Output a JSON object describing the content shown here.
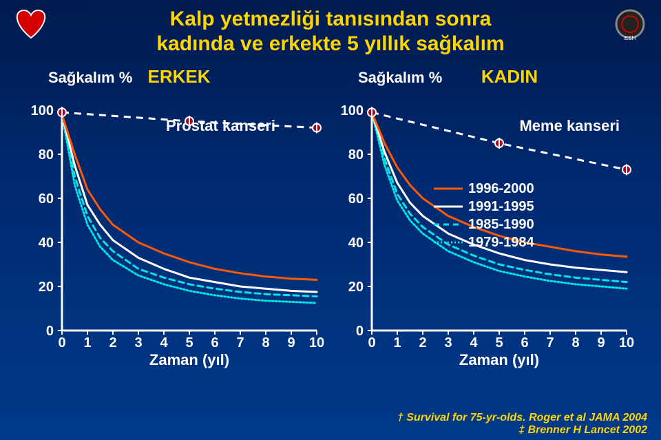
{
  "title_line1": "Kalp yetmezliği tanısından sonra",
  "title_line2": "kadında ve erkekte 5 yıllık sağkalım",
  "left_axis_label": "Sağkalım %",
  "right_axis_label": "Sağkalım %",
  "male_label": "ERKEK",
  "female_label": "KADIN",
  "male_cancer": "Prostat kanseri",
  "female_cancer": "Meme kanseri",
  "x_label": "Zaman (yıl)",
  "citation1": "† Survival for 75-yr-olds. Roger et al JAMA 2004",
  "citation2": "‡ Brenner H Lancet 2002",
  "colors": {
    "title": "#ffd500",
    "bg_top": "#001a4d",
    "bg_bot": "#003a8a",
    "axis": "#ffffff",
    "cancer_line": "#ffffff",
    "cancer_marker_fill": "#aa0020",
    "series_1996_2000": "#ff5a00",
    "series_1991_1995": "#ffffff",
    "series_1985_1990": "#00e5e5",
    "series_1979_1984": "#00e5e5"
  },
  "legend": [
    {
      "key": "s1",
      "label": "1996-2000",
      "color": "#ff5a00",
      "dash": "none"
    },
    {
      "key": "s2",
      "label": "1991-1995",
      "color": "#ffffff",
      "dash": "none"
    },
    {
      "key": "s3",
      "label": "1985-1990",
      "color": "#00e5e5",
      "dash": "8 6"
    },
    {
      "key": "s4",
      "label": "1979-1984",
      "color": "#00e5e5",
      "dash": "2 3"
    }
  ],
  "y_ticks": [
    0,
    20,
    40,
    60,
    80,
    100
  ],
  "x_ticks": [
    0,
    1,
    2,
    3,
    4,
    5,
    6,
    7,
    8,
    9,
    10
  ],
  "ylim": [
    0,
    100
  ],
  "xlim": [
    0,
    10
  ],
  "male_chart": {
    "cancer": [
      [
        0,
        99
      ],
      [
        5,
        95
      ],
      [
        10,
        92
      ]
    ],
    "s1": [
      [
        0,
        98
      ],
      [
        0.5,
        80
      ],
      [
        1,
        64
      ],
      [
        1.5,
        55
      ],
      [
        2,
        48
      ],
      [
        3,
        40
      ],
      [
        4,
        35
      ],
      [
        5,
        31
      ],
      [
        6,
        28
      ],
      [
        7,
        26
      ],
      [
        8,
        24.5
      ],
      [
        9,
        23.5
      ],
      [
        10,
        23
      ]
    ],
    "s2": [
      [
        0,
        98
      ],
      [
        0.5,
        75
      ],
      [
        1,
        57
      ],
      [
        1.5,
        48
      ],
      [
        2,
        41
      ],
      [
        3,
        33
      ],
      [
        4,
        28
      ],
      [
        5,
        24
      ],
      [
        6,
        22
      ],
      [
        7,
        20
      ],
      [
        8,
        19
      ],
      [
        9,
        18
      ],
      [
        10,
        17.5
      ]
    ],
    "s3": [
      [
        0,
        98
      ],
      [
        0.5,
        70
      ],
      [
        1,
        52
      ],
      [
        1.5,
        42
      ],
      [
        2,
        36
      ],
      [
        3,
        28
      ],
      [
        4,
        24
      ],
      [
        5,
        21
      ],
      [
        6,
        19
      ],
      [
        7,
        17.5
      ],
      [
        8,
        16.5
      ],
      [
        9,
        16
      ],
      [
        10,
        15.5
      ]
    ],
    "s4": [
      [
        0,
        98
      ],
      [
        0.5,
        66
      ],
      [
        1,
        48
      ],
      [
        1.5,
        38
      ],
      [
        2,
        32
      ],
      [
        3,
        25
      ],
      [
        4,
        21
      ],
      [
        5,
        18
      ],
      [
        6,
        16
      ],
      [
        7,
        14.5
      ],
      [
        8,
        13.5
      ],
      [
        9,
        13
      ],
      [
        10,
        12.5
      ]
    ]
  },
  "female_chart": {
    "cancer": [
      [
        0,
        99
      ],
      [
        5,
        85
      ],
      [
        10,
        73
      ]
    ],
    "s1": [
      [
        0,
        99
      ],
      [
        0.5,
        85
      ],
      [
        1,
        74
      ],
      [
        1.5,
        66
      ],
      [
        2,
        60
      ],
      [
        3,
        52
      ],
      [
        4,
        47
      ],
      [
        5,
        43
      ],
      [
        6,
        40
      ],
      [
        7,
        38
      ],
      [
        8,
        36
      ],
      [
        9,
        34.5
      ],
      [
        10,
        33.5
      ]
    ],
    "s2": [
      [
        0,
        99
      ],
      [
        0.5,
        81
      ],
      [
        1,
        67
      ],
      [
        1.5,
        58
      ],
      [
        2,
        52
      ],
      [
        3,
        44
      ],
      [
        4,
        39
      ],
      [
        5,
        35
      ],
      [
        6,
        32
      ],
      [
        7,
        30
      ],
      [
        8,
        28.5
      ],
      [
        9,
        27.5
      ],
      [
        10,
        26.5
      ]
    ],
    "s3": [
      [
        0,
        99
      ],
      [
        0.5,
        78
      ],
      [
        1,
        62
      ],
      [
        1.5,
        53
      ],
      [
        2,
        47
      ],
      [
        3,
        39
      ],
      [
        4,
        34
      ],
      [
        5,
        30
      ],
      [
        6,
        27.5
      ],
      [
        7,
        25.5
      ],
      [
        8,
        24
      ],
      [
        9,
        23
      ],
      [
        10,
        22
      ]
    ],
    "s4": [
      [
        0,
        99
      ],
      [
        0.5,
        75
      ],
      [
        1,
        59
      ],
      [
        1.5,
        50
      ],
      [
        2,
        44
      ],
      [
        3,
        36
      ],
      [
        4,
        31
      ],
      [
        5,
        27
      ],
      [
        6,
        24.5
      ],
      [
        7,
        22.5
      ],
      [
        8,
        21
      ],
      [
        9,
        20
      ],
      [
        10,
        19
      ]
    ]
  },
  "line_width": 3,
  "axis_width": 3,
  "marker_r": 5,
  "font": {
    "title_pt": 30,
    "tick_pt": 20,
    "label_pt": 22,
    "citation_pt": 16
  }
}
